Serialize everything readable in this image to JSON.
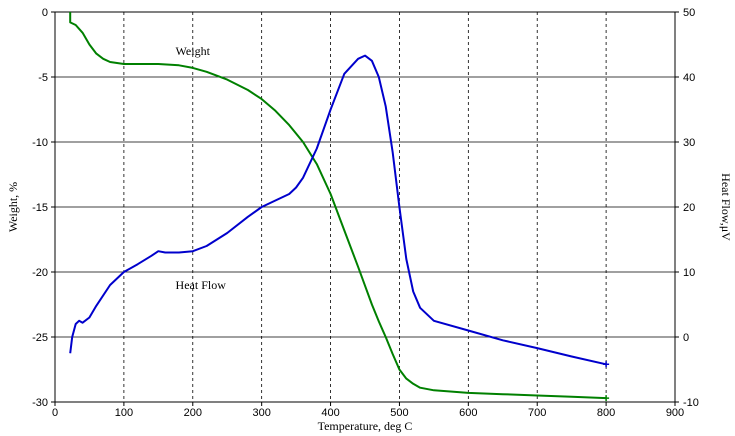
{
  "chart_data": {
    "type": "line",
    "title": "",
    "xlabel": "Temperature, deg C",
    "ylabel_left": "Weight, %",
    "ylabel_right": "Heat Flow,μV",
    "xlim": [
      0,
      900
    ],
    "ylim_left": [
      -30,
      0
    ],
    "ylim_right": [
      -10,
      50
    ],
    "x_ticks": [
      "0",
      "100",
      "200",
      "300",
      "400",
      "500",
      "600",
      "700",
      "800",
      "900"
    ],
    "y_left_ticks": [
      "0",
      "-5",
      "-10",
      "-15",
      "-20",
      "-25",
      "-30"
    ],
    "y_right_ticks": [
      "50",
      "40",
      "30",
      "20",
      "10",
      "0",
      "-10"
    ],
    "grid": {
      "x": "dashed",
      "y": "solid"
    },
    "annotations": [
      {
        "text": "Weight",
        "x": 175,
        "y_left": -3
      },
      {
        "text": "Heat Flow",
        "x": 175,
        "y_left": -21
      }
    ],
    "series": [
      {
        "name": "Weight",
        "axis": "left",
        "color": "#008000",
        "x": [
          22,
          22,
          30,
          40,
          50,
          60,
          70,
          80,
          100,
          120,
          150,
          180,
          200,
          220,
          250,
          280,
          300,
          320,
          340,
          360,
          380,
          400,
          420,
          440,
          460,
          470,
          480,
          490,
          500,
          510,
          520,
          530,
          550,
          600,
          650,
          700,
          750,
          800
        ],
        "y": [
          0,
          -0.8,
          -1.0,
          -1.6,
          -2.5,
          -3.2,
          -3.6,
          -3.85,
          -4.0,
          -4.0,
          -4.0,
          -4.1,
          -4.3,
          -4.6,
          -5.2,
          -6.0,
          -6.7,
          -7.6,
          -8.7,
          -10.0,
          -11.7,
          -14.0,
          -16.8,
          -19.6,
          -22.5,
          -23.8,
          -25.0,
          -26.3,
          -27.5,
          -28.2,
          -28.6,
          -28.9,
          -29.1,
          -29.3,
          -29.4,
          -29.5,
          -29.6,
          -29.7
        ]
      },
      {
        "name": "Heat Flow",
        "axis": "right",
        "color": "#0000cc",
        "x": [
          22,
          25,
          30,
          35,
          40,
          50,
          60,
          80,
          100,
          120,
          140,
          150,
          160,
          180,
          200,
          220,
          250,
          280,
          300,
          320,
          340,
          350,
          360,
          380,
          400,
          420,
          440,
          450,
          460,
          470,
          480,
          490,
          500,
          510,
          520,
          530,
          550,
          600,
          650,
          700,
          750,
          800
        ],
        "y": [
          -2.5,
          0.0,
          2.0,
          2.5,
          2.2,
          3.0,
          4.8,
          8.0,
          10.0,
          11.2,
          12.5,
          13.2,
          13.0,
          13.0,
          13.2,
          14.0,
          16.0,
          18.5,
          20.0,
          21.0,
          22.0,
          23.0,
          24.5,
          29.0,
          35.0,
          40.5,
          42.8,
          43.3,
          42.5,
          40.0,
          35.5,
          28.5,
          20.0,
          12.0,
          7.0,
          4.5,
          2.5,
          1.0,
          -0.5,
          -1.7,
          -3.0,
          -4.2
        ]
      }
    ]
  }
}
